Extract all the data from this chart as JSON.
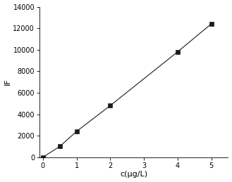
{
  "x": [
    0,
    0.5,
    1.0,
    2.0,
    4.0,
    5.0
  ],
  "y": [
    0,
    1000,
    2400,
    4800,
    9800,
    12400
  ],
  "marker": "s",
  "marker_color": "#1a1a1a",
  "marker_size": 4,
  "line_color": "#1a1a1a",
  "line_width": 0.8,
  "line_style": "-",
  "xlabel": "c(μg/L)",
  "ylabel": "IF",
  "xlim": [
    -0.1,
    5.5
  ],
  "ylim": [
    0,
    14000
  ],
  "xticks": [
    0,
    1,
    2,
    3,
    4,
    5
  ],
  "yticks": [
    0,
    2000,
    4000,
    6000,
    8000,
    10000,
    12000,
    14000
  ],
  "xlabel_fontsize": 8,
  "ylabel_fontsize": 8,
  "tick_fontsize": 7,
  "background_color": "#ffffff"
}
